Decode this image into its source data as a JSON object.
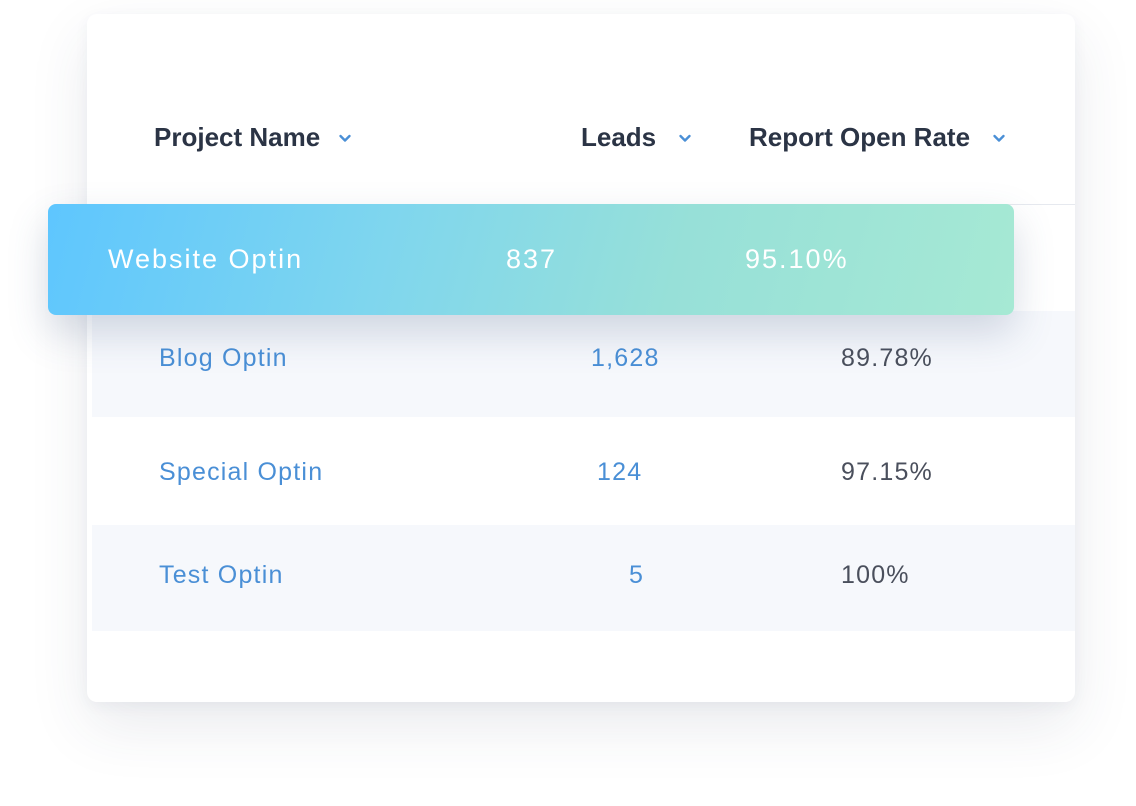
{
  "table": {
    "columns": [
      {
        "label": "Project Name"
      },
      {
        "label": "Leads"
      },
      {
        "label": "Report Open Rate"
      }
    ],
    "highlighted_row": {
      "project": "Website Optin",
      "leads": "837",
      "open_rate": "95.10%"
    },
    "rows": [
      {
        "project": "Blog Optin",
        "leads": "1,628",
        "open_rate": "89.78%"
      },
      {
        "project": "Special Optin",
        "leads": "124",
        "open_rate": "97.15%"
      },
      {
        "project": "Test Optin",
        "leads": "5",
        "open_rate": "100%"
      }
    ]
  },
  "colors": {
    "link": "#4a8fd6",
    "heading": "#2b3445",
    "value": "#4a4f5c",
    "highlight_start": "#5ec6fe",
    "highlight_end": "#a6e9d4",
    "alt_row": "#f6f8fc"
  },
  "icons": {
    "sort": "chevron-down-icon"
  }
}
